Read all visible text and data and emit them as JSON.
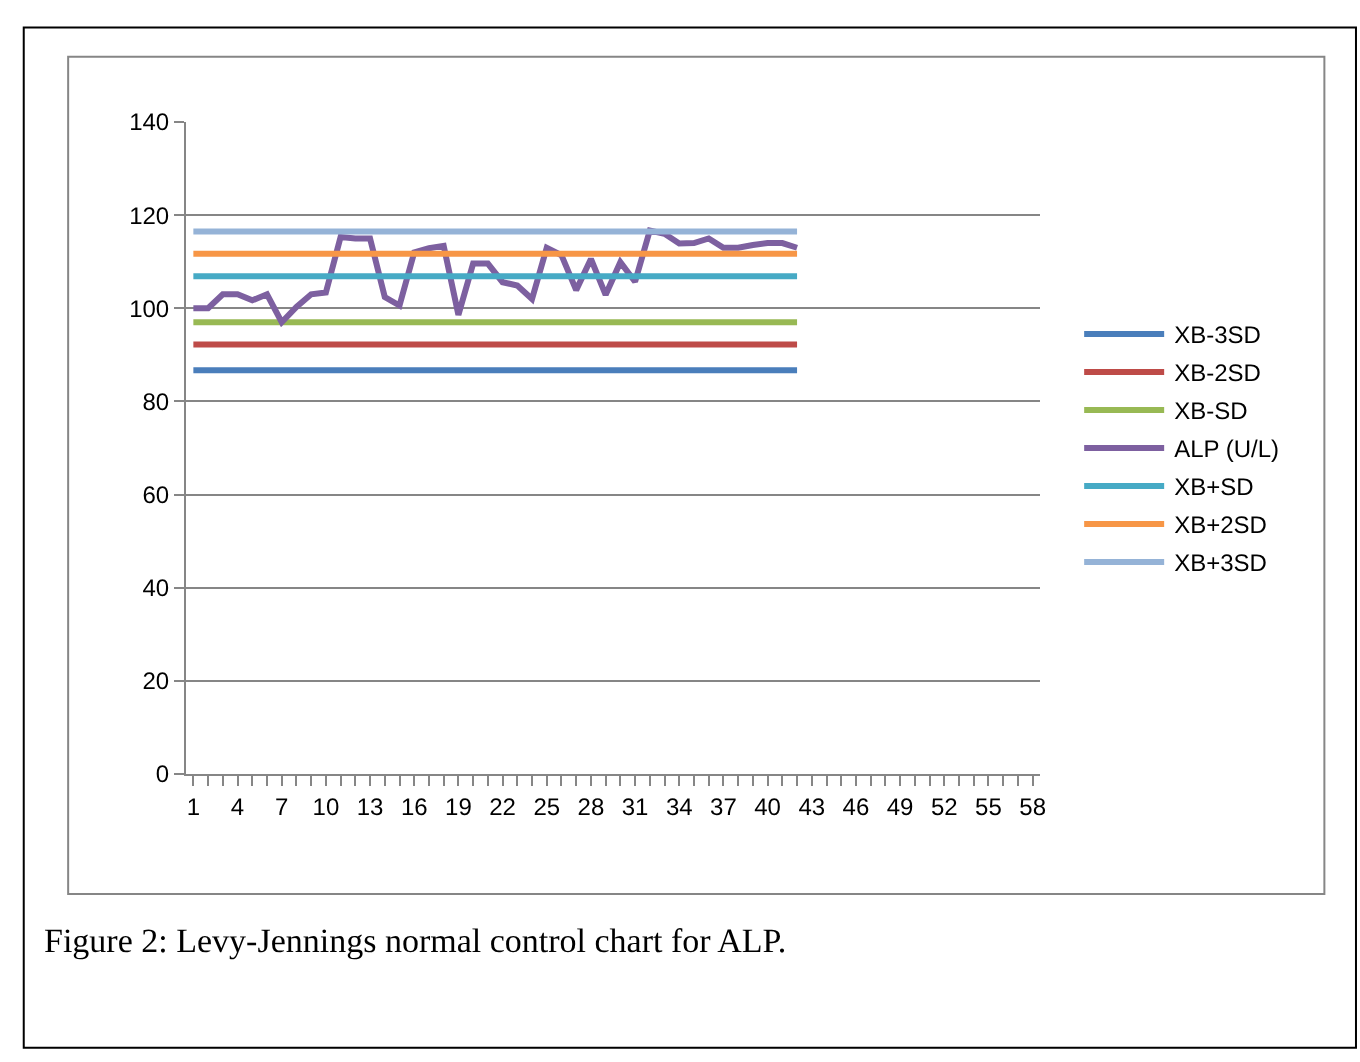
{
  "chart_data": {
    "type": "line",
    "categories": [
      "1",
      null,
      null,
      "4",
      null,
      null,
      "7",
      null,
      null,
      "10",
      null,
      null,
      "13",
      null,
      null,
      "16",
      null,
      null,
      "19",
      null,
      null,
      "22",
      null,
      null,
      "25",
      null,
      null,
      "28",
      null,
      null,
      "31",
      null,
      null,
      "34",
      null,
      null,
      "37",
      null,
      null,
      "40",
      null,
      null,
      "43",
      null,
      null,
      "46",
      null,
      null,
      "49",
      null,
      null,
      "52",
      null,
      null,
      "55",
      null,
      null,
      "58"
    ],
    "series": [
      {
        "name": "XB-3SD",
        "color": "#4a7ebb",
        "values": [
          86.7,
          86.7,
          86.7,
          86.7,
          86.7,
          86.7,
          86.7,
          86.7,
          86.7,
          86.7,
          86.7,
          86.7,
          86.7,
          86.7,
          86.7,
          86.7,
          86.7,
          86.7,
          86.7,
          86.7,
          86.7,
          86.7,
          86.7,
          86.7,
          86.7,
          86.7,
          86.7,
          86.7,
          86.7,
          86.7,
          86.7,
          86.7,
          86.7,
          86.7,
          86.7,
          86.7,
          86.7,
          86.7,
          86.7,
          86.7,
          86.7,
          86.7,
          null,
          null,
          null,
          null,
          null,
          null,
          null,
          null,
          null,
          null,
          null,
          null,
          null,
          null,
          null,
          null
        ]
      },
      {
        "name": "XB-2SD",
        "color": "#be4b48",
        "values": [
          92.2,
          92.2,
          92.2,
          92.2,
          92.2,
          92.2,
          92.2,
          92.2,
          92.2,
          92.2,
          92.2,
          92.2,
          92.2,
          92.2,
          92.2,
          92.2,
          92.2,
          92.2,
          92.2,
          92.2,
          92.2,
          92.2,
          92.2,
          92.2,
          92.2,
          92.2,
          92.2,
          92.2,
          92.2,
          92.2,
          92.2,
          92.2,
          92.2,
          92.2,
          92.2,
          92.2,
          92.2,
          92.2,
          92.2,
          92.2,
          92.2,
          92.2,
          null,
          null,
          null,
          null,
          null,
          null,
          null,
          null,
          null,
          null,
          null,
          null,
          null,
          null,
          null,
          null
        ]
      },
      {
        "name": "XB-SD",
        "color": "#98b954",
        "values": [
          97,
          97,
          97,
          97,
          97,
          97,
          97,
          97,
          97,
          97,
          97,
          97,
          97,
          97,
          97,
          97,
          97,
          97,
          97,
          97,
          97,
          97,
          97,
          97,
          97,
          97,
          97,
          97,
          97,
          97,
          97,
          97,
          97,
          97,
          97,
          97,
          97,
          97,
          97,
          97,
          97,
          97,
          null,
          null,
          null,
          null,
          null,
          null,
          null,
          null,
          null,
          null,
          null,
          null,
          null,
          null,
          null,
          null
        ]
      },
      {
        "name": "ALP (U/L)",
        "color": "#7d60a0",
        "values": [
          100,
          100,
          103,
          103,
          101.7,
          103,
          97,
          100.3,
          103,
          103.4,
          115.3,
          115,
          115,
          102.4,
          100.6,
          112,
          112.9,
          113.4,
          98.6,
          109.6,
          109.6,
          105.6,
          104.9,
          102,
          113,
          111.4,
          103.9,
          110.6,
          102.9,
          109.9,
          105.7,
          116.7,
          116,
          113.9,
          114,
          115,
          113,
          113,
          113.6,
          114,
          114,
          113,
          null,
          null,
          null,
          null,
          null,
          null,
          null,
          null,
          null,
          null,
          null,
          null,
          null,
          null,
          null,
          null
        ]
      },
      {
        "name": "XB+SD",
        "color": "#46aac5",
        "values": [
          106.9,
          106.9,
          106.9,
          106.9,
          106.9,
          106.9,
          106.9,
          106.9,
          106.9,
          106.9,
          106.9,
          106.9,
          106.9,
          106.9,
          106.9,
          106.9,
          106.9,
          106.9,
          106.9,
          106.9,
          106.9,
          106.9,
          106.9,
          106.9,
          106.9,
          106.9,
          106.9,
          106.9,
          106.9,
          106.9,
          106.9,
          106.9,
          106.9,
          106.9,
          106.9,
          106.9,
          106.9,
          106.9,
          106.9,
          106.9,
          106.9,
          106.9,
          null,
          null,
          null,
          null,
          null,
          null,
          null,
          null,
          null,
          null,
          null,
          null,
          null,
          null,
          null,
          null
        ]
      },
      {
        "name": "XB+2SD",
        "color": "#f79646",
        "values": [
          111.7,
          111.7,
          111.7,
          111.7,
          111.7,
          111.7,
          111.7,
          111.7,
          111.7,
          111.7,
          111.7,
          111.7,
          111.7,
          111.7,
          111.7,
          111.7,
          111.7,
          111.7,
          111.7,
          111.7,
          111.7,
          111.7,
          111.7,
          111.7,
          111.7,
          111.7,
          111.7,
          111.7,
          111.7,
          111.7,
          111.7,
          111.7,
          111.7,
          111.7,
          111.7,
          111.7,
          111.7,
          111.7,
          111.7,
          111.7,
          111.7,
          111.7,
          null,
          null,
          null,
          null,
          null,
          null,
          null,
          null,
          null,
          null,
          null,
          null,
          null,
          null,
          null,
          null
        ]
      },
      {
        "name": "XB+3SD",
        "color": "#95b3d7",
        "values": [
          116.5,
          116.5,
          116.5,
          116.5,
          116.5,
          116.5,
          116.5,
          116.5,
          116.5,
          116.5,
          116.5,
          116.5,
          116.5,
          116.5,
          116.5,
          116.5,
          116.5,
          116.5,
          116.5,
          116.5,
          116.5,
          116.5,
          116.5,
          116.5,
          116.5,
          116.5,
          116.5,
          116.5,
          116.5,
          116.5,
          116.5,
          116.5,
          116.5,
          116.5,
          116.5,
          116.5,
          116.5,
          116.5,
          116.5,
          116.5,
          116.5,
          116.5,
          null,
          null,
          null,
          null,
          null,
          null,
          null,
          null,
          null,
          null,
          null,
          null,
          null,
          null,
          null,
          null
        ]
      }
    ],
    "ylim": [
      0,
      140
    ],
    "yticks": [
      0,
      20,
      40,
      60,
      80,
      100,
      120,
      140
    ],
    "grid": "y",
    "legend": "right",
    "marker": "none",
    "line_style": "solid",
    "annotations": [
      "Figure 2: Levy-Jennings normal control chart for ALP."
    ]
  }
}
